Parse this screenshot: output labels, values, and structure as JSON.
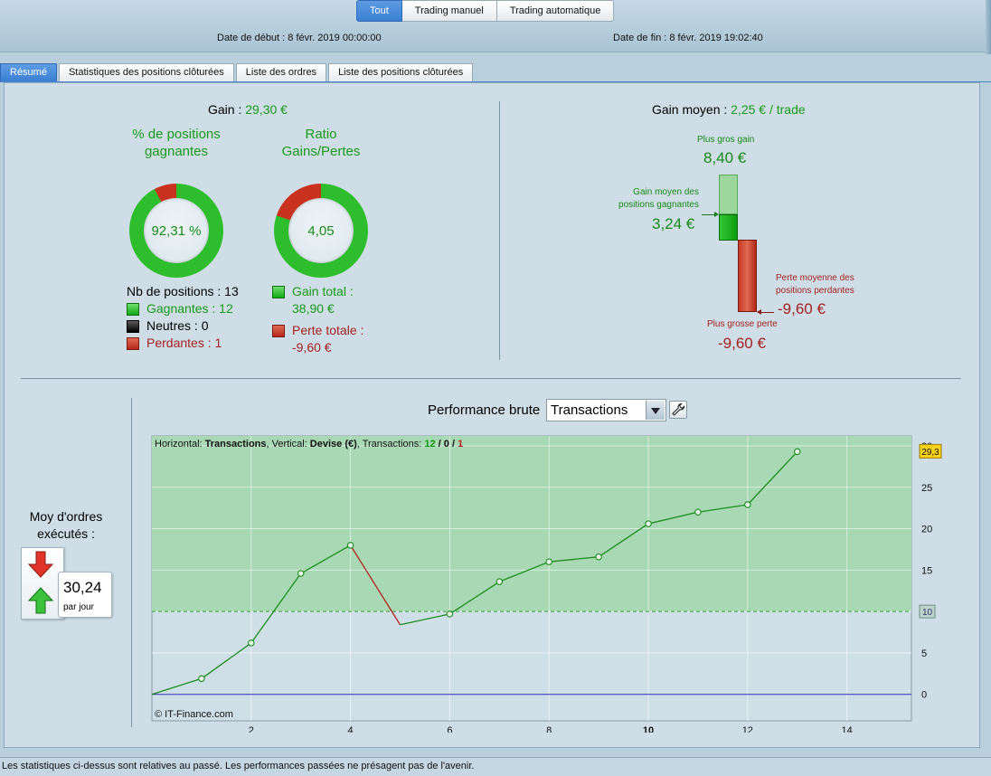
{
  "header": {
    "modes": [
      {
        "label": "Tout",
        "active": true
      },
      {
        "label": "Trading manuel",
        "active": false
      },
      {
        "label": "Trading automatique",
        "active": false
      }
    ],
    "start_date": "Date de début :  8 févr. 2019 00:00:00",
    "end_date": "Date de fin :  8 févr. 2019 19:02:40"
  },
  "section_tabs": [
    {
      "label": "Résumé",
      "active": true
    },
    {
      "label": "Statistiques des positions clôturées",
      "active": false
    },
    {
      "label": "Liste des ordres",
      "active": false
    },
    {
      "label": "Liste des positions clôturées",
      "active": false
    }
  ],
  "summary": {
    "gain_label": "Gain : ",
    "gain_value": "29,30 €",
    "win_pct_title": "% de positions gagnantes",
    "win_pct_value": "92,31 %",
    "win_pct_fraction": 0.9231,
    "ratio_title": "Ratio Gains/Pertes",
    "ratio_value": "4,05",
    "ratio_red_fraction": 0.198,
    "positions_count": "Nb de positions : 13",
    "winners": "Gagnantes : 12",
    "neutrals": "Neutres : 0",
    "losers": "Perdantes : 1",
    "total_gain_label": "Gain total :",
    "total_gain_value": "38,90 €",
    "total_loss_label": "Perte totale :",
    "total_loss_value": "-9,60 €"
  },
  "average": {
    "title": "Gain moyen : ",
    "value": "2,25 € / trade",
    "max_gain_label": "Plus gros gain",
    "max_gain_value": "8,40 €",
    "avg_win_label_1": "Gain moyen des",
    "avg_win_label_2": "positions gagnantes",
    "avg_win_value": "3,24 €",
    "avg_loss_label_1": "Perte moyenne des",
    "avg_loss_label_2": "positions perdantes",
    "avg_loss_value": "-9,60 €",
    "max_loss_label": "Plus grosse perte",
    "max_loss_value": "-9,60 €"
  },
  "orders": {
    "title": "Moy d'ordres exécutés :",
    "value": "30,24",
    "unit": "par jour"
  },
  "performance": {
    "label": "Performance brute",
    "select_value": "Transactions"
  },
  "chart_data": {
    "type": "line",
    "info_prefix": "Horizontal: ",
    "info_h": "Transactions",
    "info_mid": ", Vertical: ",
    "info_v": "Devise (€)",
    "info_tx": ", Transactions: ",
    "info_win": "12",
    "info_sep1": " / ",
    "info_neutral": "0",
    "info_sep2": " / ",
    "info_loss": "1",
    "watermark": "© IT-Finance.com",
    "x": [
      0,
      1,
      2,
      3,
      4,
      5,
      6,
      7,
      8,
      9,
      10,
      11,
      12,
      13
    ],
    "y": [
      0,
      1.9,
      6.2,
      14.6,
      18.0,
      8.4,
      9.7,
      13.6,
      16.0,
      16.6,
      20.6,
      22.0,
      22.9,
      29.3
    ],
    "segment_colors": [
      "green",
      "green",
      "green",
      "green",
      "red",
      "green",
      "green",
      "green",
      "green",
      "green",
      "green",
      "green",
      "green"
    ],
    "xlim": [
      0,
      15.3
    ],
    "ylim": [
      -3.2,
      31.2
    ],
    "x_ticks": [
      "2",
      "4",
      "6",
      "8",
      "10",
      "12",
      "14"
    ],
    "y_ticks": [
      "0",
      "5",
      "10",
      "15",
      "20",
      "25",
      "30"
    ],
    "threshold": 10,
    "threshold_label": "10",
    "last_value_label": "29,3",
    "colors": {
      "up": "#1e8c1e",
      "down": "#b22222",
      "fill": "#a8d8b4",
      "baseline": "#2a2ab4"
    }
  },
  "footer": {
    "disclaimer": "Les statistiques ci-dessus sont relatives au passé. Les performances passées ne présagent pas de l'avenir."
  }
}
